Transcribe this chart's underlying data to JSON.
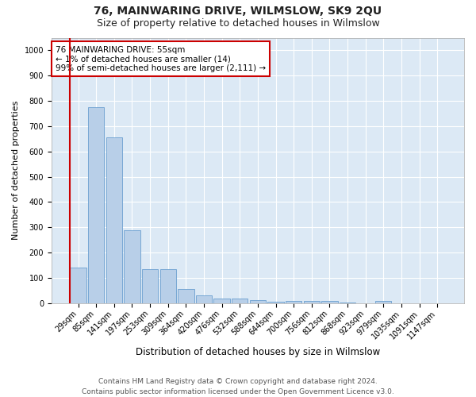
{
  "title": "76, MAINWARING DRIVE, WILMSLOW, SK9 2QU",
  "subtitle": "Size of property relative to detached houses in Wilmslow",
  "xlabel": "Distribution of detached houses by size in Wilmslow",
  "ylabel": "Number of detached properties",
  "categories": [
    "29sqm",
    "85sqm",
    "141sqm",
    "197sqm",
    "253sqm",
    "309sqm",
    "364sqm",
    "420sqm",
    "476sqm",
    "532sqm",
    "588sqm",
    "644sqm",
    "700sqm",
    "756sqm",
    "812sqm",
    "868sqm",
    "923sqm",
    "979sqm",
    "1035sqm",
    "1091sqm",
    "1147sqm"
  ],
  "values": [
    140,
    775,
    655,
    290,
    135,
    135,
    55,
    30,
    20,
    20,
    12,
    5,
    10,
    8,
    8,
    2,
    0,
    8,
    0,
    0,
    0
  ],
  "bar_color": "#b8cfe8",
  "bar_edge_color": "#6a9fd0",
  "red_line_color": "#cc0000",
  "annotation_text": "76 MAINWARING DRIVE: 55sqm\n← 1% of detached houses are smaller (14)\n99% of semi-detached houses are larger (2,111) →",
  "annotation_box_color": "#ffffff",
  "annotation_box_edge_color": "#cc0000",
  "ylim": [
    0,
    1050
  ],
  "yticks": [
    0,
    100,
    200,
    300,
    400,
    500,
    600,
    700,
    800,
    900,
    1000
  ],
  "plot_bg_color": "#dce9f5",
  "footer_line1": "Contains HM Land Registry data © Crown copyright and database right 2024.",
  "footer_line2": "Contains public sector information licensed under the Open Government Licence v3.0.",
  "title_fontsize": 10,
  "subtitle_fontsize": 9,
  "xlabel_fontsize": 8.5,
  "ylabel_fontsize": 8,
  "tick_fontsize": 7,
  "annotation_fontsize": 7.5,
  "footer_fontsize": 6.5
}
